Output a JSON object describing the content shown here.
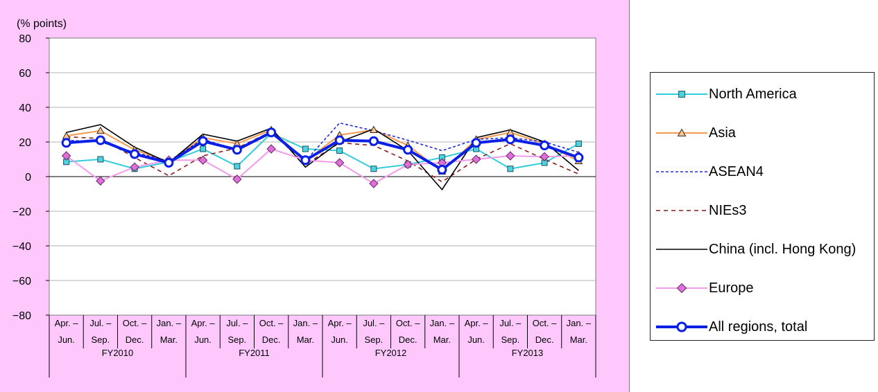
{
  "chart_data": {
    "type": "line",
    "ylabel": "(% points)",
    "ylim": [
      -80,
      80
    ],
    "yticks": [
      80,
      60,
      40,
      20,
      0,
      -20,
      -40,
      -60,
      -80
    ],
    "grid": true,
    "legend_position": "right",
    "quarters": [
      [
        "Apr. –",
        "Jun."
      ],
      [
        "Jul. –",
        "Sep."
      ],
      [
        "Oct. –",
        "Dec."
      ],
      [
        "Jan. –",
        "Mar."
      ],
      [
        "Apr. –",
        "Jun."
      ],
      [
        "Jul. –",
        "Sep."
      ],
      [
        "Oct. –",
        "Dec."
      ],
      [
        "Jan. –",
        "Mar."
      ],
      [
        "Apr. –",
        "Jun."
      ],
      [
        "Jul. –",
        "Sep."
      ],
      [
        "Oct. –",
        "Dec."
      ],
      [
        "Jan. –",
        "Mar."
      ],
      [
        "Apr. –",
        "Jun."
      ],
      [
        "Jul. –",
        "Sep."
      ],
      [
        "Oct. –",
        "Dec."
      ],
      [
        "Jan. –",
        "Mar."
      ]
    ],
    "fiscal_years": [
      "FY2010",
      "FY2011",
      "FY2012",
      "FY2013"
    ],
    "series": [
      {
        "name": "North America",
        "color": "#33ccdd",
        "style": "solid",
        "marker": "square",
        "values": [
          8.5,
          10,
          4.5,
          8.5,
          16,
          6,
          25,
          16,
          15,
          4.5,
          7,
          11,
          16,
          4.5,
          8,
          19
        ]
      },
      {
        "name": "Asia",
        "color": "#f59a4a",
        "style": "solid",
        "marker": "triangle",
        "values": [
          23.5,
          26.5,
          15.5,
          8.5,
          22.5,
          19,
          27,
          9,
          24,
          27,
          18,
          3,
          21.5,
          25.5,
          19,
          9
        ]
      },
      {
        "name": "ASEAN4",
        "color": "#1f2ad9",
        "style": "dashed",
        "marker": "none",
        "values": [
          21,
          20,
          14,
          9,
          21.5,
          15.5,
          25,
          9,
          31,
          26.5,
          21,
          15,
          21.5,
          22.5,
          20,
          14
        ]
      },
      {
        "name": "NIEs3",
        "color": "#8b1a1a",
        "style": "dashed-long",
        "marker": "none",
        "values": [
          23,
          22,
          11,
          0.5,
          12,
          16.5,
          26,
          7,
          19.5,
          18,
          9,
          -3,
          10,
          19,
          10,
          1.5
        ]
      },
      {
        "name": "China (incl. Hong Kong)",
        "color": "#000000",
        "style": "solid",
        "marker": "none",
        "values": [
          25.5,
          30,
          17,
          8,
          24.5,
          20.5,
          28,
          5.5,
          20,
          27.5,
          15,
          -7.5,
          22.5,
          27,
          20,
          3.5
        ]
      },
      {
        "name": "Europe",
        "color": "#f29bea",
        "style": "solid",
        "marker": "diamond",
        "values": [
          12,
          -2.5,
          5.5,
          9.5,
          9.5,
          -1.5,
          16,
          9.5,
          8,
          -4,
          7,
          8,
          10,
          12,
          11.5,
          12
        ]
      },
      {
        "name": "All regions, total",
        "color": "#0a1fe6",
        "style": "bold",
        "marker": "circle",
        "values": [
          19.5,
          21,
          13,
          8,
          20.5,
          15.5,
          25.5,
          9.5,
          21,
          20.5,
          15.5,
          4,
          19.5,
          21.5,
          18,
          11
        ]
      }
    ]
  }
}
